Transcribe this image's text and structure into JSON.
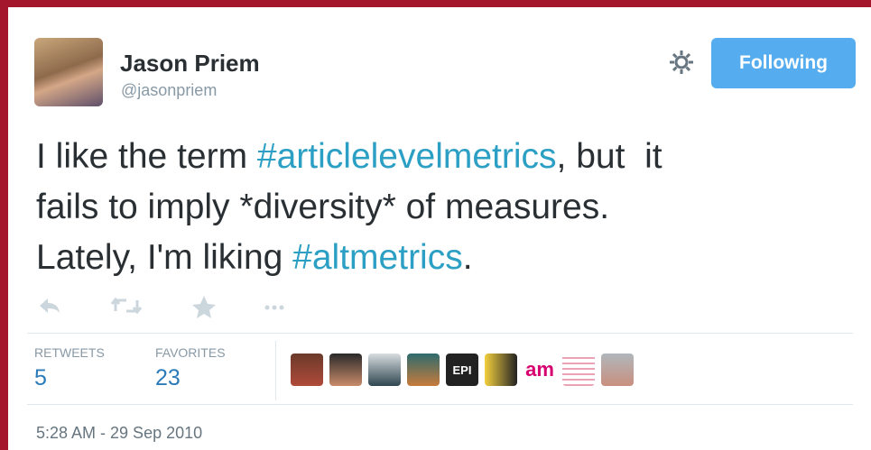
{
  "user": {
    "name": "Jason Priem",
    "handle": "@jasonpriem"
  },
  "button": "Following",
  "tweet": {
    "segments": [
      {
        "text": "I like the term ",
        "hashtag": false
      },
      {
        "text": "#articlelevelmetrics",
        "hashtag": true
      },
      {
        "text": ", but  it",
        "hashtag": false
      },
      {
        "text": "fails to imply *diversity* of measures.",
        "hashtag": false
      },
      {
        "text": "Lately, I'm liking ",
        "hashtag": false
      },
      {
        "text": "#altmetrics",
        "hashtag": true
      },
      {
        "text": ".",
        "hashtag": false
      }
    ]
  },
  "stats": [
    {
      "label": "RETWEETS",
      "value": "5"
    },
    {
      "label": "FAVORITES",
      "value": "23"
    }
  ],
  "favoriters": [
    "EPI",
    "am"
  ],
  "timestamp": "5:28 AM - 29 Sep 2010"
}
